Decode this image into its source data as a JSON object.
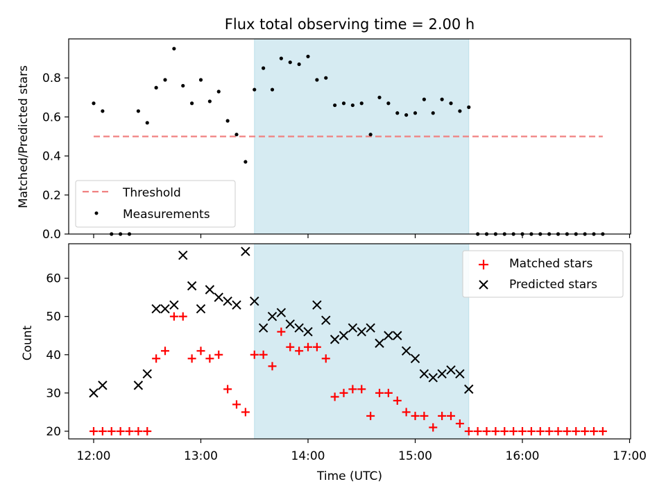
{
  "chart_data": [
    {
      "type": "scatter",
      "title": "Flux total observing time = 2.00 h",
      "xlabel": "",
      "ylabel": "Matched/Predicted stars",
      "ylim": [
        0,
        1.0
      ],
      "yticks": [
        "0.0",
        "0.2",
        "0.4",
        "0.6",
        "0.8"
      ],
      "xticks_shown": false,
      "shaded_region": {
        "start": "13:30",
        "end": "15:30",
        "color": "#add8e6"
      },
      "threshold": {
        "name": "Threshold",
        "value": 0.5,
        "start": "12:00",
        "end": "16:45",
        "color": "#f08080",
        "style": "dashed"
      },
      "legend": {
        "location": "lower-left",
        "entries": [
          "Threshold",
          "Measurements"
        ]
      },
      "series": [
        {
          "name": "Measurements",
          "color": "#000000",
          "marker": "dot",
          "points": [
            [
              "12:00",
              0.67
            ],
            [
              "12:05",
              0.63
            ],
            [
              "12:10",
              0.0
            ],
            [
              "12:15",
              0.0
            ],
            [
              "12:20",
              0.0
            ],
            [
              "12:25",
              0.63
            ],
            [
              "12:30",
              0.57
            ],
            [
              "12:35",
              0.75
            ],
            [
              "12:40",
              0.79
            ],
            [
              "12:45",
              0.95
            ],
            [
              "12:50",
              0.76
            ],
            [
              "12:55",
              0.67
            ],
            [
              "13:00",
              0.79
            ],
            [
              "13:05",
              0.68
            ],
            [
              "13:10",
              0.73
            ],
            [
              "13:15",
              0.58
            ],
            [
              "13:20",
              0.51
            ],
            [
              "13:25",
              0.37
            ],
            [
              "13:30",
              0.74
            ],
            [
              "13:35",
              0.85
            ],
            [
              "13:40",
              0.74
            ],
            [
              "13:45",
              0.9
            ],
            [
              "13:50",
              0.88
            ],
            [
              "13:55",
              0.87
            ],
            [
              "14:00",
              0.91
            ],
            [
              "14:05",
              0.79
            ],
            [
              "14:10",
              0.8
            ],
            [
              "14:15",
              0.66
            ],
            [
              "14:20",
              0.67
            ],
            [
              "14:25",
              0.66
            ],
            [
              "14:30",
              0.67
            ],
            [
              "14:35",
              0.51
            ],
            [
              "14:40",
              0.7
            ],
            [
              "14:45",
              0.67
            ],
            [
              "14:50",
              0.62
            ],
            [
              "14:55",
              0.61
            ],
            [
              "15:00",
              0.62
            ],
            [
              "15:05",
              0.69
            ],
            [
              "15:10",
              0.62
            ],
            [
              "15:15",
              0.69
            ],
            [
              "15:20",
              0.67
            ],
            [
              "15:25",
              0.63
            ],
            [
              "15:30",
              0.65
            ],
            [
              "15:35",
              0.0
            ],
            [
              "15:40",
              0.0
            ],
            [
              "15:45",
              0.0
            ],
            [
              "15:50",
              0.0
            ],
            [
              "15:55",
              0.0
            ],
            [
              "16:00",
              0.0
            ],
            [
              "16:05",
              0.0
            ],
            [
              "16:10",
              0.0
            ],
            [
              "16:15",
              0.0
            ],
            [
              "16:20",
              0.0
            ],
            [
              "16:25",
              0.0
            ],
            [
              "16:30",
              0.0
            ],
            [
              "16:35",
              0.0
            ],
            [
              "16:40",
              0.0
            ],
            [
              "16:45",
              0.0
            ]
          ]
        }
      ]
    },
    {
      "type": "scatter",
      "title": "",
      "xlabel": "Time (UTC)",
      "ylabel": "Count",
      "xlim": [
        "11:45",
        "17:00"
      ],
      "ylim": [
        18,
        69
      ],
      "yticks": [
        "20",
        "30",
        "40",
        "50",
        "60"
      ],
      "xticks": [
        "12:00",
        "13:00",
        "14:00",
        "15:00",
        "16:00",
        "17:00"
      ],
      "shaded_region": {
        "start": "13:30",
        "end": "15:30",
        "color": "#add8e6"
      },
      "legend": {
        "location": "upper-right",
        "entries": [
          "Matched stars",
          "Predicted stars"
        ]
      },
      "series": [
        {
          "name": "Matched stars",
          "color": "#ff0000",
          "marker": "plus",
          "points": [
            [
              "12:00",
              20
            ],
            [
              "12:05",
              20
            ],
            [
              "12:10",
              20
            ],
            [
              "12:15",
              20
            ],
            [
              "12:20",
              20
            ],
            [
              "12:25",
              20
            ],
            [
              "12:30",
              20
            ],
            [
              "12:35",
              39
            ],
            [
              "12:40",
              41
            ],
            [
              "12:45",
              50
            ],
            [
              "12:50",
              50
            ],
            [
              "12:55",
              39
            ],
            [
              "13:00",
              41
            ],
            [
              "13:05",
              39
            ],
            [
              "13:10",
              40
            ],
            [
              "13:15",
              31
            ],
            [
              "13:20",
              27
            ],
            [
              "13:25",
              25
            ],
            [
              "13:30",
              40
            ],
            [
              "13:35",
              40
            ],
            [
              "13:40",
              37
            ],
            [
              "13:45",
              46
            ],
            [
              "13:50",
              42
            ],
            [
              "13:55",
              41
            ],
            [
              "14:00",
              42
            ],
            [
              "14:05",
              42
            ],
            [
              "14:10",
              39
            ],
            [
              "14:15",
              29
            ],
            [
              "14:20",
              30
            ],
            [
              "14:25",
              31
            ],
            [
              "14:30",
              31
            ],
            [
              "14:35",
              24
            ],
            [
              "14:40",
              30
            ],
            [
              "14:45",
              30
            ],
            [
              "14:50",
              28
            ],
            [
              "14:55",
              25
            ],
            [
              "15:00",
              24
            ],
            [
              "15:05",
              24
            ],
            [
              "15:10",
              21
            ],
            [
              "15:15",
              24
            ],
            [
              "15:20",
              24
            ],
            [
              "15:25",
              22
            ],
            [
              "15:30",
              20
            ],
            [
              "15:35",
              20
            ],
            [
              "15:40",
              20
            ],
            [
              "15:45",
              20
            ],
            [
              "15:50",
              20
            ],
            [
              "15:55",
              20
            ],
            [
              "16:00",
              20
            ],
            [
              "16:05",
              20
            ],
            [
              "16:10",
              20
            ],
            [
              "16:15",
              20
            ],
            [
              "16:20",
              20
            ],
            [
              "16:25",
              20
            ],
            [
              "16:30",
              20
            ],
            [
              "16:35",
              20
            ],
            [
              "16:40",
              20
            ],
            [
              "16:45",
              20
            ]
          ]
        },
        {
          "name": "Predicted stars",
          "color": "#000000",
          "marker": "x",
          "points": [
            [
              "12:00",
              30
            ],
            [
              "12:05",
              32
            ],
            [
              "12:25",
              32
            ],
            [
              "12:30",
              35
            ],
            [
              "12:35",
              52
            ],
            [
              "12:40",
              52
            ],
            [
              "12:45",
              53
            ],
            [
              "12:50",
              66
            ],
            [
              "12:55",
              58
            ],
            [
              "13:00",
              52
            ],
            [
              "13:05",
              57
            ],
            [
              "13:10",
              55
            ],
            [
              "13:15",
              54
            ],
            [
              "13:20",
              53
            ],
            [
              "13:25",
              67
            ],
            [
              "13:30",
              54
            ],
            [
              "13:35",
              47
            ],
            [
              "13:40",
              50
            ],
            [
              "13:45",
              51
            ],
            [
              "13:50",
              48
            ],
            [
              "13:55",
              47
            ],
            [
              "14:00",
              46
            ],
            [
              "14:05",
              53
            ],
            [
              "14:10",
              49
            ],
            [
              "14:15",
              44
            ],
            [
              "14:20",
              45
            ],
            [
              "14:25",
              47
            ],
            [
              "14:30",
              46
            ],
            [
              "14:35",
              47
            ],
            [
              "14:40",
              43
            ],
            [
              "14:45",
              45
            ],
            [
              "14:50",
              45
            ],
            [
              "14:55",
              41
            ],
            [
              "15:00",
              39
            ],
            [
              "15:05",
              35
            ],
            [
              "15:10",
              34
            ],
            [
              "15:15",
              35
            ],
            [
              "15:20",
              36
            ],
            [
              "15:25",
              35
            ],
            [
              "15:30",
              31
            ]
          ]
        }
      ]
    }
  ]
}
